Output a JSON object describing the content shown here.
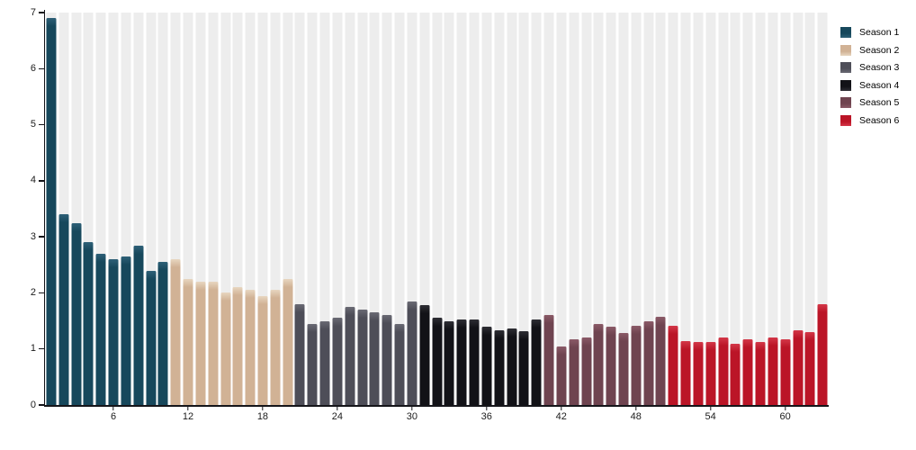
{
  "chart_data": {
    "type": "bar",
    "title": "",
    "xlabel": "",
    "ylabel": "",
    "x_unit": "episode",
    "ylim": [
      0,
      7
    ],
    "yticks": [
      0,
      1,
      2,
      3,
      4,
      5,
      6,
      7
    ],
    "xticks": [
      6,
      12,
      18,
      24,
      30,
      36,
      42,
      48,
      54,
      60
    ],
    "grid": "vertical-stripes",
    "stripe_color": "#ededed",
    "axis_color": "#15151a",
    "tick_label_color": "#1c1c1c",
    "legend_position": "top-right",
    "series": [
      {
        "name": "Season 1",
        "color": "#17485c",
        "color_light": "#2e6077",
        "episode_start": 1,
        "values": [
          6.9,
          3.4,
          3.25,
          2.9,
          2.7,
          2.6,
          2.65,
          2.85,
          2.4,
          2.55
        ]
      },
      {
        "name": "Season 2",
        "color": "#d1b295",
        "color_light": "#e7d6c0",
        "episode_start": 11,
        "values": [
          2.6,
          2.25,
          2.2,
          2.2,
          2.0,
          2.1,
          2.05,
          1.95,
          2.05,
          2.25
        ]
      },
      {
        "name": "Season 3",
        "color": "#4e4e58",
        "color_light": "#6a6a74",
        "episode_start": 21,
        "values": [
          1.8,
          1.45,
          1.5,
          1.55,
          1.75,
          1.7,
          1.65,
          1.6,
          1.45,
          1.85
        ]
      },
      {
        "name": "Season 4",
        "color": "#121217",
        "color_light": "#2d2d34",
        "episode_start": 31,
        "values": [
          1.78,
          1.55,
          1.5,
          1.53,
          1.52,
          1.4,
          1.33,
          1.36,
          1.32,
          1.53
        ]
      },
      {
        "name": "Season 5",
        "color": "#6f4450",
        "color_light": "#8b5a67",
        "episode_start": 41,
        "values": [
          1.6,
          1.05,
          1.17,
          1.21,
          1.44,
          1.4,
          1.29,
          1.41,
          1.49,
          1.58
        ]
      },
      {
        "name": "Season 6",
        "color": "#bb1527",
        "color_light": "#d33748",
        "episode_start": 51,
        "values": [
          1.42,
          1.14,
          1.13,
          1.13,
          1.21,
          1.1,
          1.18,
          1.13,
          1.2,
          1.18,
          1.33,
          1.3,
          1.8
        ]
      }
    ]
  }
}
